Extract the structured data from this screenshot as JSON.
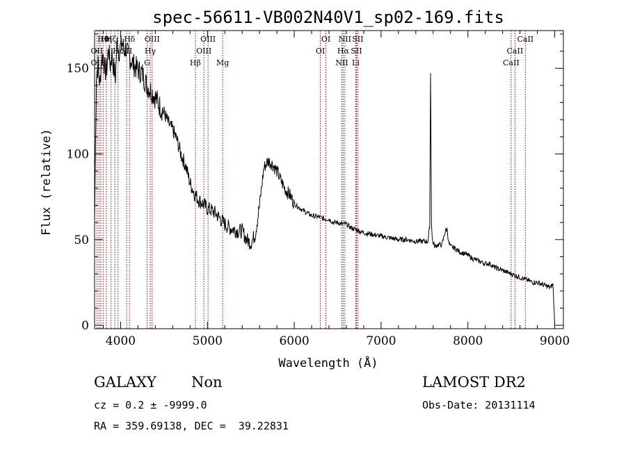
{
  "chart_data": {
    "type": "line",
    "title": "spec-56611-VB002N40V1_sp02-169.fits",
    "xlabel": "Wavelength (Å)",
    "ylabel": "Flux (relative)",
    "xlim": [
      3700,
      9100
    ],
    "ylim": [
      -2,
      172
    ],
    "x_ticks": [
      4000,
      5000,
      6000,
      7000,
      8000,
      9000
    ],
    "y_ticks": [
      0,
      50,
      100,
      150
    ],
    "grid": false,
    "series": [
      {
        "x": [
          3700,
          3720,
          3740,
          3760,
          3780,
          3800,
          3820,
          3840,
          3860,
          3880,
          3900,
          3920,
          3940,
          3960,
          3980,
          4000,
          4020,
          4040,
          4060,
          4080,
          4100,
          4150,
          4200,
          4250,
          4300,
          4350,
          4400,
          4450,
          4500,
          4550,
          4600,
          4650,
          4700,
          4750,
          4800,
          4850,
          4900,
          4950,
          5000,
          5050,
          5100,
          5150,
          5200,
          5250,
          5300,
          5350,
          5400,
          5450,
          5500,
          5550,
          5600,
          5650,
          5700,
          5750,
          5800,
          5850,
          5900,
          5950,
          6000,
          6100,
          6200,
          6300,
          6350,
          6400,
          6450,
          6500,
          6550,
          6600,
          6650,
          6700,
          6800,
          6900,
          7000,
          7100,
          7200,
          7300,
          7400,
          7500,
          7540,
          7560,
          7570,
          7580,
          7590,
          7600,
          7620,
          7650,
          7700,
          7740,
          7760,
          7780,
          7800,
          7850,
          7900,
          7950,
          8000,
          8050,
          8100,
          8150,
          8200,
          8250,
          8300,
          8350,
          8400,
          8450,
          8500,
          8550,
          8600,
          8650,
          8700,
          8750,
          8800,
          8850,
          8900,
          8950,
          8980,
          9000
        ],
        "values": [
          60,
          145,
          152,
          140,
          155,
          158,
          148,
          150,
          162,
          152,
          158,
          150,
          145,
          166,
          160,
          162,
          165,
          160,
          162,
          158,
          157,
          152,
          149,
          147,
          140,
          137,
          133,
          128,
          124,
          118,
          114,
          108,
          99,
          93,
          83,
          77,
          73,
          71,
          68,
          67,
          65,
          62,
          59,
          57,
          56,
          55,
          55,
          50,
          48,
          53,
          70,
          92,
          96,
          94,
          90,
          84,
          79,
          76,
          71,
          67,
          64,
          63,
          62,
          62,
          60,
          60,
          59,
          59,
          57,
          56,
          54,
          53,
          52,
          51,
          50,
          50,
          49,
          49,
          49,
          58,
          147,
          60,
          50,
          48,
          46,
          47,
          47,
          55,
          56,
          48,
          46,
          45,
          43,
          42,
          41,
          39,
          38,
          37,
          36,
          36,
          34,
          33,
          32,
          31,
          30,
          29,
          28,
          27,
          26,
          25,
          25,
          24,
          23,
          22,
          24,
          0
        ]
      }
    ],
    "line_markers": [
      {
        "label": "Hθ",
        "x": 3798,
        "row": 1
      },
      {
        "label": "Hη",
        "x": 3835,
        "row": 1
      },
      {
        "label": "Hζ",
        "x": 3889,
        "row": 1
      },
      {
        "label": "Hδ",
        "x": 4102,
        "row": 1
      },
      {
        "label": "OII",
        "x": 3727,
        "row": 2
      },
      {
        "label": "Hε",
        "x": 3970,
        "row": 2
      },
      {
        "label": "OII",
        "x": 3727,
        "row": 3
      },
      {
        "label": "SII",
        "x": 4069,
        "row": 2
      },
      {
        "label": "OIII",
        "x": 4363,
        "row": 1
      },
      {
        "label": "Hγ",
        "x": 4341,
        "row": 2
      },
      {
        "label": "G",
        "x": 4305,
        "row": 3
      },
      {
        "label": "Hβ",
        "x": 4861,
        "row": 3
      },
      {
        "label": "OIII",
        "x": 5007,
        "row": 1
      },
      {
        "label": "OIII",
        "x": 4959,
        "row": 2
      },
      {
        "label": "Mg",
        "x": 5175,
        "row": 3
      },
      {
        "label": "OI",
        "x": 6364,
        "row": 1
      },
      {
        "label": "OI",
        "x": 6300,
        "row": 2
      },
      {
        "label": "NII",
        "x": 6583,
        "row": 1
      },
      {
        "label": "Hα",
        "x": 6563,
        "row": 2
      },
      {
        "label": "NII",
        "x": 6548,
        "row": 3
      },
      {
        "label": "SII",
        "x": 6731,
        "row": 1
      },
      {
        "label": "SII",
        "x": 6716,
        "row": 2
      },
      {
        "label": "Li",
        "x": 6708,
        "row": 3
      },
      {
        "label": "CaII",
        "x": 8662,
        "row": 1
      },
      {
        "label": "CaII",
        "x": 8542,
        "row": 2
      },
      {
        "label": "CaII",
        "x": 8498,
        "row": 3
      }
    ],
    "extra_line_positions": [
      3727,
      3750,
      3771,
      3798,
      3835,
      3889,
      3934,
      3970,
      4069,
      4102,
      4305,
      4341,
      4363,
      4861,
      4959,
      5007,
      5175,
      6300,
      6364,
      6548,
      6563,
      6583,
      6708,
      6716,
      6731,
      8498,
      8542,
      8662
    ],
    "line_marker_color": "#8b0000",
    "data_color": "#000000"
  },
  "info": {
    "object_class": "GALAXY",
    "subclass": "Non",
    "survey": "LAMOST DR2",
    "cz_line": "cz = 0.2 ± -9999.0",
    "obs_date_line": "Obs-Date: 20131114",
    "radec_line": "RA = 359.69138, DEC =  39.22831"
  }
}
